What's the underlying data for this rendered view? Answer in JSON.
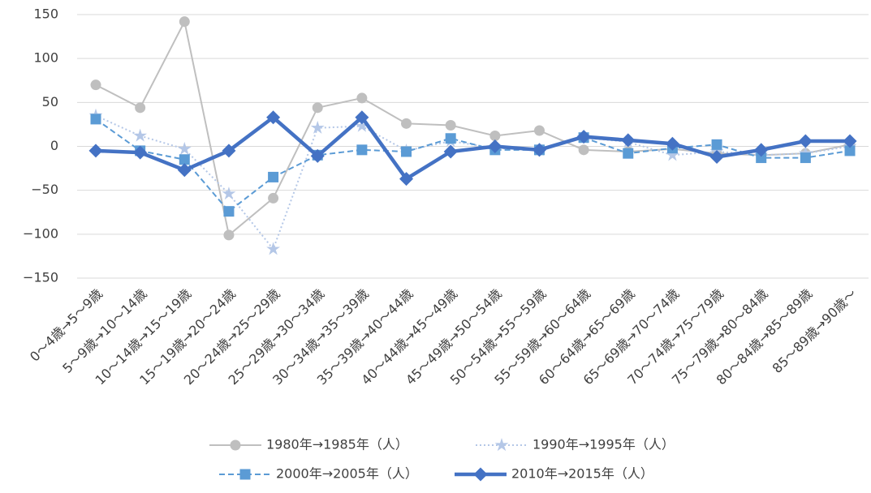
{
  "chart_data": {
    "type": "line",
    "categories": [
      "0～4歳→5～9歳",
      "5～9歳→10～14歳",
      "10～14歳→15～19歳",
      "15～19歳→20～24歳",
      "20～24歳→25～29歳",
      "25～29歳→30～34歳",
      "30～34歳→35～39歳",
      "35～39歳→40～44歳",
      "40～44歳→45～49歳",
      "45～49歳→50～54歳",
      "50～54歳→55～59歳",
      "55～59歳→60～64歳",
      "60～64歳→65～69歳",
      "65～69歳→70～74歳",
      "70～74歳→75～79歳",
      "75～79歳→80～84歳",
      "80～84歳→85～89歳",
      "85～89歳→90歳～"
    ],
    "series": [
      {
        "name": "1980年→1985年（人）",
        "color": "#bfbfbf",
        "linestyle": "solid",
        "linewidth": 2,
        "marker": "circle",
        "values": [
          70,
          44,
          142,
          -101,
          -59,
          44,
          55,
          26,
          24,
          12,
          18,
          -4,
          -6,
          -3,
          -8,
          -10,
          -8,
          2
        ]
      },
      {
        "name": "1990年→1995年（人）",
        "color": "#b4c7e7",
        "linestyle": "dotted",
        "linewidth": 2,
        "marker": "star",
        "values": [
          35,
          12,
          -3,
          -54,
          -117,
          21,
          23,
          -5,
          6,
          -2,
          -4,
          10,
          5,
          -10,
          -6,
          -10,
          -8,
          0
        ]
      },
      {
        "name": "2000年→2005年（人）",
        "color": "#5b9bd5",
        "linestyle": "dashed",
        "linewidth": 2,
        "marker": "square",
        "values": [
          31,
          -5,
          -15,
          -74,
          -35,
          -10,
          -4,
          -6,
          9,
          -4,
          -4,
          10,
          -8,
          -2,
          2,
          -13,
          -13,
          -5
        ]
      },
      {
        "name": "2010年→2015年（人）",
        "color": "#4472c4",
        "linestyle": "solid",
        "linewidth": 4.5,
        "marker": "diamond",
        "values": [
          -5,
          -7,
          -27,
          -5,
          33,
          -11,
          33,
          -37,
          -6,
          0,
          -4,
          11,
          7,
          3,
          -12,
          -4,
          6,
          6
        ]
      }
    ],
    "ylim": [
      -150,
      150
    ],
    "yticks": [
      {
        "value": -150,
        "label": "−150"
      },
      {
        "value": -100,
        "label": "−100"
      },
      {
        "value": -50,
        "label": "−50"
      },
      0,
      50,
      100,
      150
    ],
    "grid": true,
    "legend": "bottom"
  }
}
